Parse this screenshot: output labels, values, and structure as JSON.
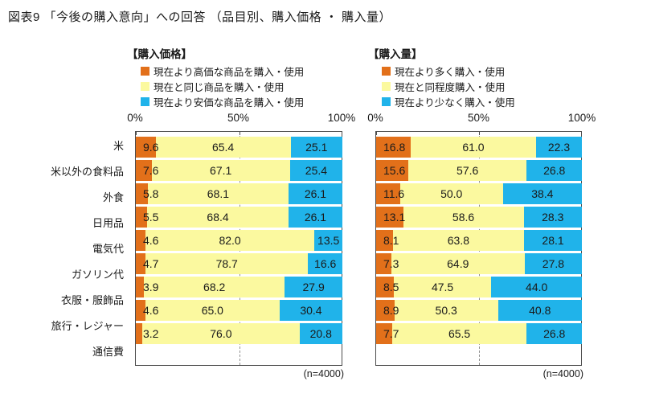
{
  "page": {
    "title": "図表9 「今後の購入意向」への回答 （品目別、購入価格 ・ 購入量）"
  },
  "axis": {
    "ticks": [
      "0%",
      "50%",
      "100%"
    ]
  },
  "categories": [
    "米",
    "米以外の食料品",
    "外食",
    "日用品",
    "電気代",
    "ガソリン代",
    "衣服・服飾品",
    "旅行・レジャー",
    "通信費"
  ],
  "colors": {
    "increase": "#E2701A",
    "same": "#FBF99F",
    "decrease": "#20B3EA"
  },
  "charts": [
    {
      "heading": "【購入価格】",
      "legend": [
        {
          "label": "現在より高価な商品を購入・使用",
          "color": "#E2701A"
        },
        {
          "label": "現在と同じ商品を購入・使用",
          "color": "#FBF99F"
        },
        {
          "label": "現在より安価な商品を購入・使用",
          "color": "#20B3EA"
        }
      ],
      "n_label": "(n=4000)"
    },
    {
      "heading": "【購入量】",
      "legend": [
        {
          "label": "現在より多く購入・使用",
          "color": "#E2701A"
        },
        {
          "label": "現在と同程度購入・使用",
          "color": "#FBF99F"
        },
        {
          "label": "現在より少なく購入・使用",
          "color": "#20B3EA"
        }
      ],
      "n_label": "(n=4000)"
    }
  ],
  "chart_data": [
    {
      "type": "bar",
      "stacked": true,
      "orientation": "horizontal",
      "title": "【購入価格】",
      "categories": [
        "米",
        "米以外の食料品",
        "外食",
        "日用品",
        "電気代",
        "ガソリン代",
        "衣服・服飾品",
        "旅行・レジャー",
        "通信費"
      ],
      "series": [
        {
          "name": "現在より高価な商品を購入・使用",
          "color": "#E2701A",
          "values": [
            9.6,
            7.6,
            5.8,
            5.5,
            4.6,
            4.7,
            3.9,
            4.6,
            3.2
          ]
        },
        {
          "name": "現在と同じ商品を購入・使用",
          "color": "#FBF99F",
          "values": [
            65.4,
            67.1,
            68.1,
            68.4,
            82.0,
            78.7,
            68.2,
            65.0,
            76.0
          ]
        },
        {
          "name": "現在より安価な商品を購入・使用",
          "color": "#20B3EA",
          "values": [
            25.1,
            25.4,
            26.1,
            26.1,
            13.5,
            16.6,
            27.9,
            30.4,
            20.8
          ]
        }
      ],
      "xlim": [
        0,
        100
      ],
      "tick_labels": [
        "0%",
        "50%",
        "100%"
      ],
      "gridline_at": 50,
      "legend_position": "top",
      "n_label": "(n=4000)"
    },
    {
      "type": "bar",
      "stacked": true,
      "orientation": "horizontal",
      "title": "【購入量】",
      "categories": [
        "米",
        "米以外の食料品",
        "外食",
        "日用品",
        "電気代",
        "ガソリン代",
        "衣服・服飾品",
        "旅行・レジャー",
        "通信費"
      ],
      "series": [
        {
          "name": "現在より多く購入・使用",
          "color": "#E2701A",
          "values": [
            16.8,
            15.6,
            11.6,
            13.1,
            8.1,
            7.3,
            8.5,
            8.9,
            7.7
          ]
        },
        {
          "name": "現在と同程度購入・使用",
          "color": "#FBF99F",
          "values": [
            61.0,
            57.6,
            50.0,
            58.6,
            63.8,
            64.9,
            47.5,
            50.3,
            65.5
          ]
        },
        {
          "name": "現在より少なく購入・使用",
          "color": "#20B3EA",
          "values": [
            22.3,
            26.8,
            38.4,
            28.3,
            28.1,
            27.8,
            44.0,
            40.8,
            26.8
          ]
        }
      ],
      "xlim": [
        0,
        100
      ],
      "tick_labels": [
        "0%",
        "50%",
        "100%"
      ],
      "gridline_at": 50,
      "legend_position": "top",
      "n_label": "(n=4000)"
    }
  ]
}
